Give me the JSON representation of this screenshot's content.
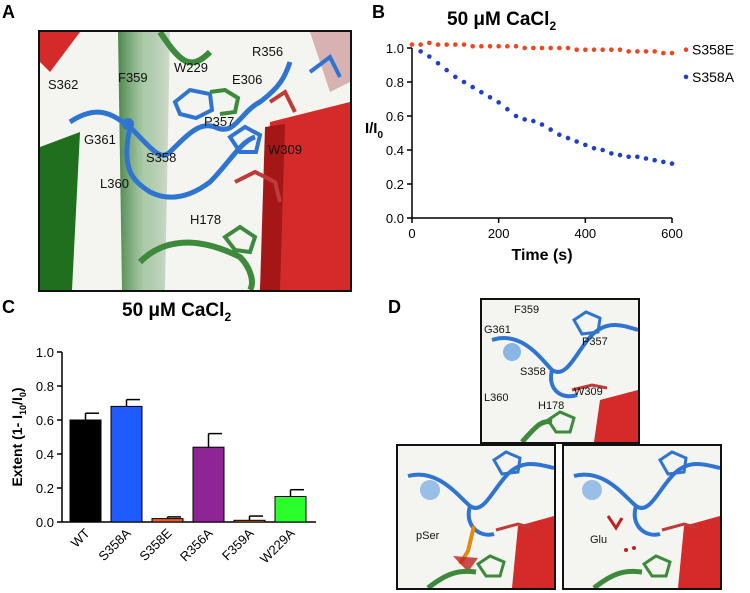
{
  "panels": {
    "a": {
      "letter": "A",
      "labels": [
        "S362",
        "F359",
        "W229",
        "R356",
        "E306",
        "G361",
        "P357",
        "S358",
        "W309",
        "L360",
        "H178"
      ]
    },
    "b": {
      "letter": "B",
      "title_main": "50 μM CaCl",
      "title_sub": "2"
    },
    "c": {
      "letter": "C",
      "title_main": "50 μM CaCl",
      "title_sub": "2"
    },
    "d": {
      "letter": "D",
      "top_labels": [
        "F359",
        "G361",
        "P357",
        "S358",
        "W309",
        "L360",
        "H178"
      ],
      "bottom_left_label": "pSer",
      "bottom_right_label": "Glu"
    }
  },
  "chart_data": [
    {
      "type": "scatter",
      "title": "50 μM CaCl2",
      "xlabel": "Time (s)",
      "ylabel": "I/I0",
      "xlim": [
        0,
        600
      ],
      "ylim": [
        0.0,
        1.0
      ],
      "xticks": [
        "0",
        "200",
        "400",
        "600"
      ],
      "yticks": [
        "0.0",
        "0.2",
        "0.4",
        "0.6",
        "0.8",
        "1.0"
      ],
      "series": [
        {
          "name": "S358E",
          "color": "#f0451e",
          "x": [
            0,
            20,
            40,
            60,
            80,
            100,
            120,
            140,
            160,
            180,
            200,
            220,
            240,
            260,
            280,
            300,
            320,
            340,
            360,
            380,
            400,
            420,
            440,
            460,
            480,
            500,
            520,
            540,
            560,
            580,
            600
          ],
          "y": [
            1.02,
            1.02,
            1.03,
            1.02,
            1.02,
            1.02,
            1.02,
            1.01,
            1.01,
            1.01,
            1.01,
            1.01,
            1.01,
            1.0,
            1.0,
            1.0,
            1.0,
            1.0,
            1.0,
            0.99,
            0.99,
            0.99,
            0.99,
            0.99,
            0.99,
            0.98,
            0.98,
            0.98,
            0.98,
            0.97,
            0.97
          ]
        },
        {
          "name": "S358A",
          "color": "#1f3fc7",
          "x": [
            20,
            40,
            60,
            80,
            100,
            120,
            140,
            160,
            180,
            200,
            220,
            240,
            260,
            280,
            300,
            320,
            340,
            360,
            380,
            400,
            420,
            440,
            460,
            480,
            500,
            520,
            540,
            560,
            580,
            600
          ],
          "y": [
            0.98,
            0.95,
            0.91,
            0.87,
            0.83,
            0.8,
            0.77,
            0.74,
            0.71,
            0.68,
            0.64,
            0.6,
            0.58,
            0.57,
            0.55,
            0.52,
            0.49,
            0.47,
            0.45,
            0.43,
            0.41,
            0.4,
            0.38,
            0.37,
            0.36,
            0.36,
            0.35,
            0.34,
            0.33,
            0.32
          ]
        }
      ]
    },
    {
      "type": "bar",
      "title": "50 μM CaCl2",
      "ylabel": "Extent (1- I10/I0)",
      "ylabel_parts": [
        "Extent (1- I",
        "10",
        "/I",
        "0",
        ")"
      ],
      "ylim": [
        0.0,
        1.0
      ],
      "yticks": [
        "0.0",
        "0.2",
        "0.4",
        "0.6",
        "0.8",
        "1.0"
      ],
      "categories": [
        "WT",
        "S358A",
        "S358E",
        "R356A",
        "F359A",
        "W229A"
      ],
      "values": [
        0.6,
        0.68,
        0.02,
        0.44,
        0.01,
        0.15
      ],
      "errors": [
        0.04,
        0.04,
        0.01,
        0.08,
        0.025,
        0.04
      ],
      "colors": [
        "#000000",
        "#1f5cff",
        "#f05a1e",
        "#8e2496",
        "#f07a14",
        "#2bff2b"
      ]
    }
  ]
}
